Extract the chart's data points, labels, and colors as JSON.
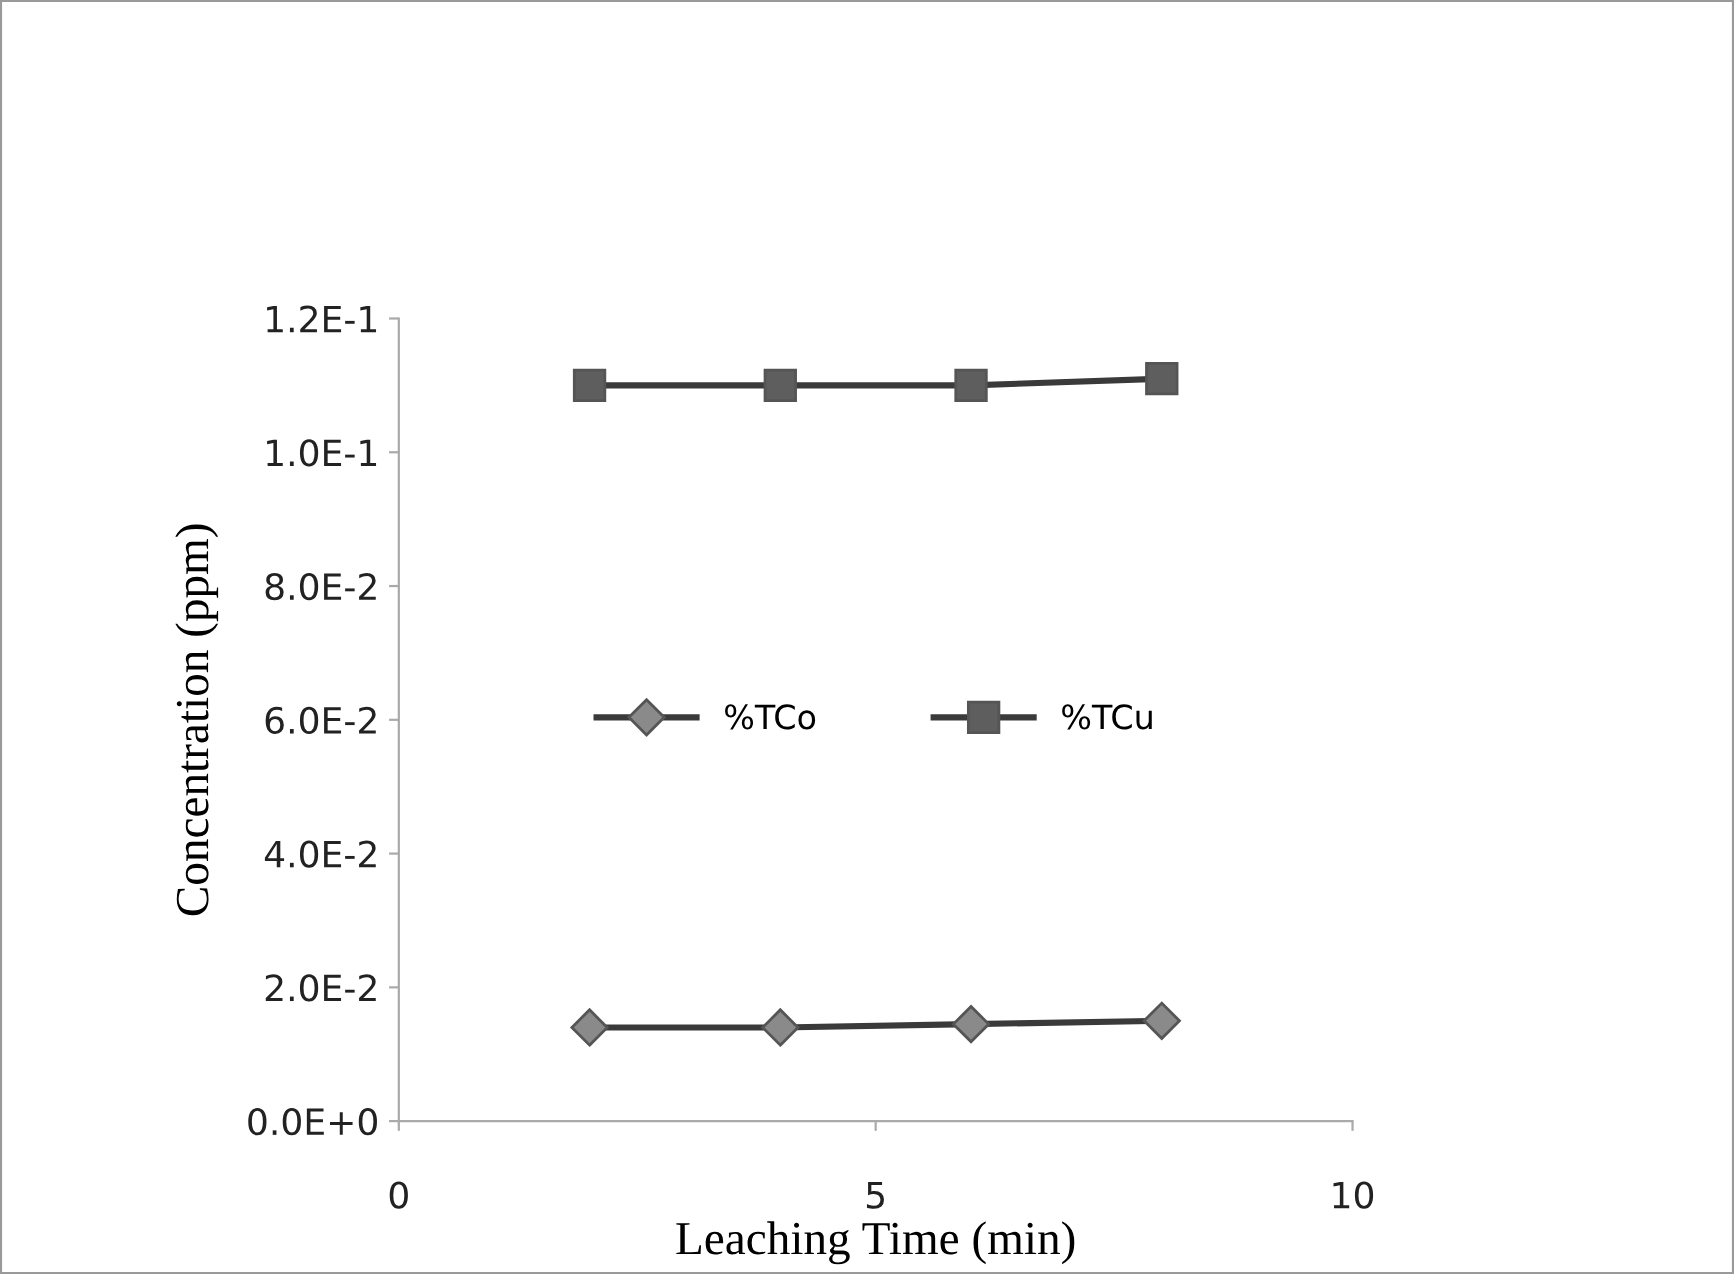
{
  "chart_data": {
    "type": "line",
    "xlabel": "Leaching Time (min)",
    "ylabel": "Concentration (ppm)",
    "x": [
      2,
      4,
      6,
      8
    ],
    "series": [
      {
        "name": "%TCo",
        "color": "#8a8a8a",
        "marker": "diamond",
        "values": [
          0.014,
          0.014,
          0.0145,
          0.015
        ]
      },
      {
        "name": "%TCu",
        "color": "#5e5e5e",
        "marker": "square",
        "values": [
          0.11,
          0.11,
          0.11,
          0.111
        ]
      }
    ],
    "xlim": [
      0,
      10
    ],
    "xticks": [
      0,
      5,
      10
    ],
    "ylim": [
      0,
      0.12
    ],
    "yticks": [
      {
        "value": 0,
        "label": "0.0E+0"
      },
      {
        "value": 0.02,
        "label": "2.0E-2"
      },
      {
        "value": 0.04,
        "label": "4.0E-2"
      },
      {
        "value": 0.06,
        "label": "6.0E-2"
      },
      {
        "value": 0.08,
        "label": "8.0E-2"
      },
      {
        "value": 0.1,
        "label": "1.0E-1"
      },
      {
        "value": 0.12,
        "label": "1.2E-1"
      }
    ],
    "grid": false,
    "legend": "center",
    "line_style": "solid"
  }
}
